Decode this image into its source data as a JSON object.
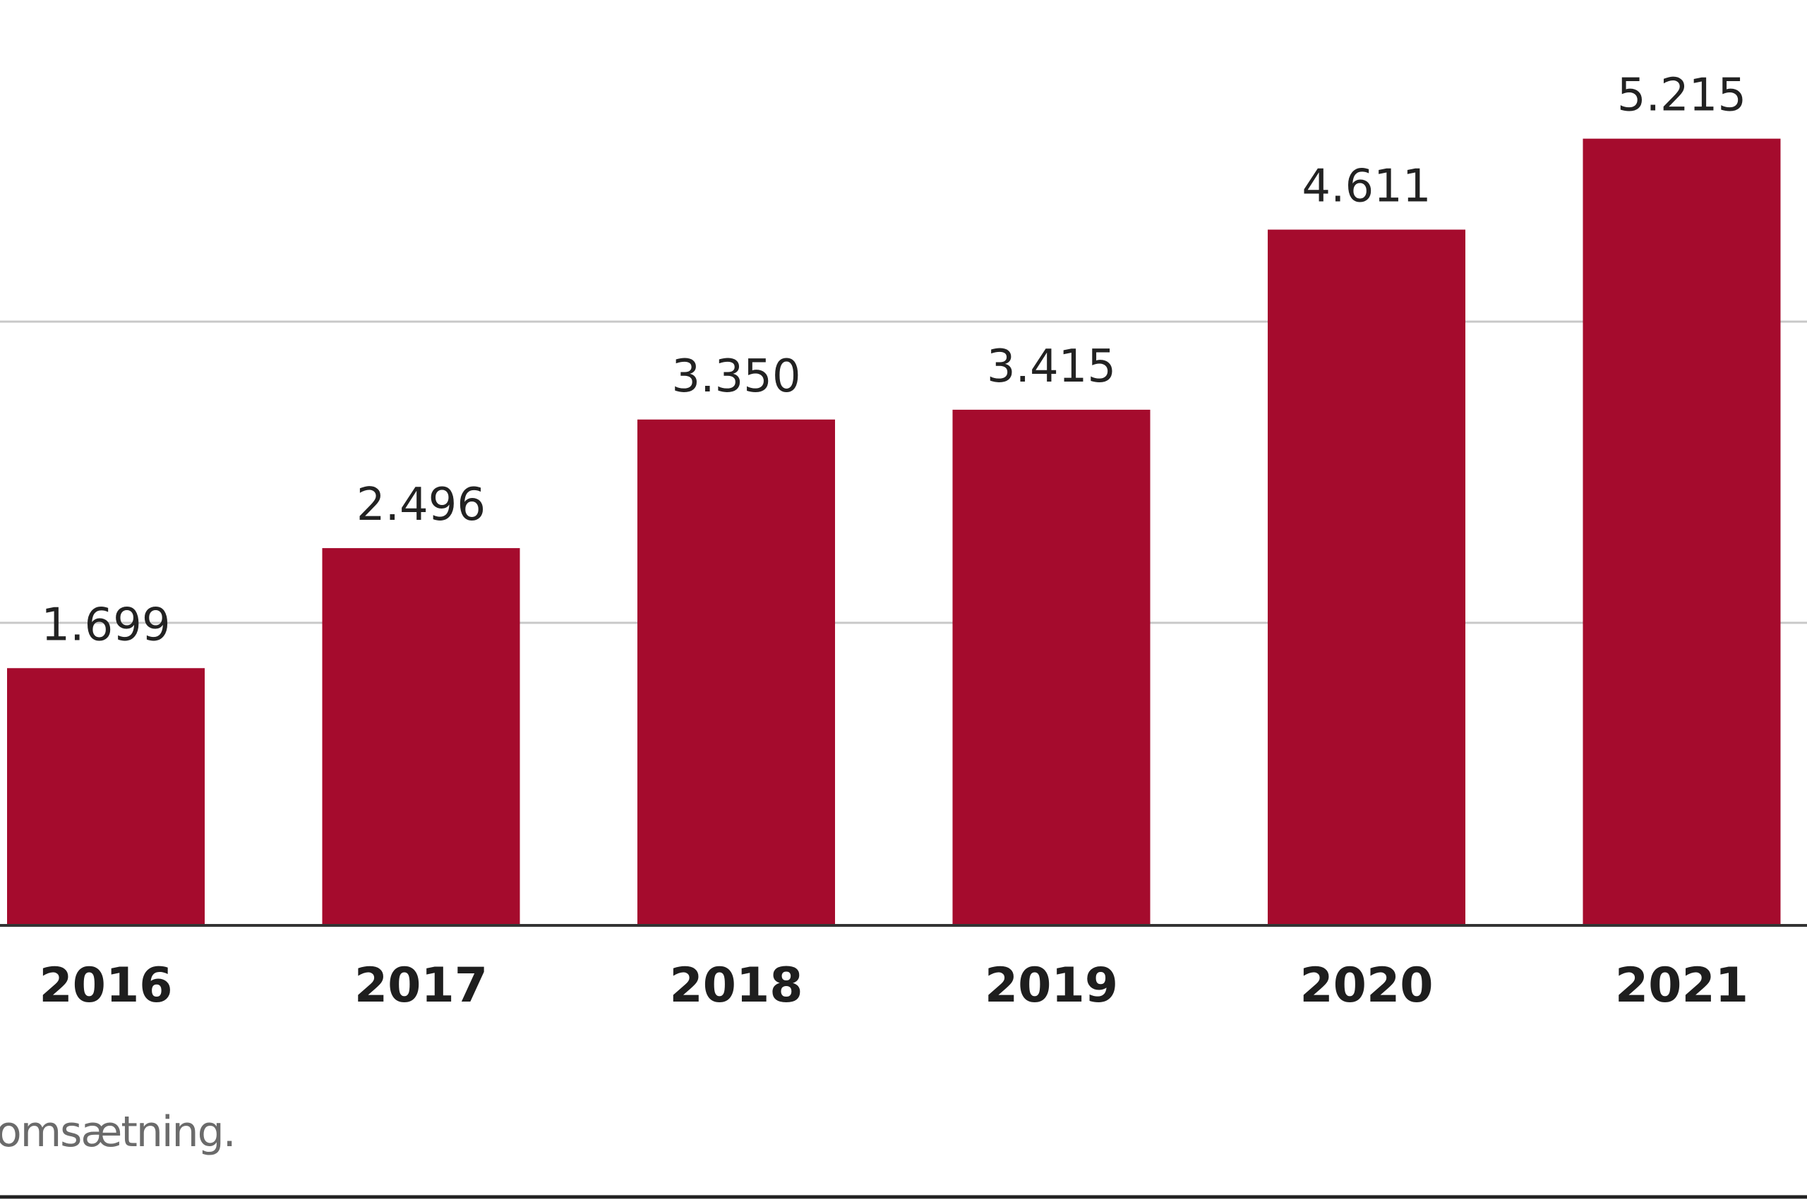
{
  "chart_data": {
    "type": "bar",
    "categories": [
      "2016",
      "2017",
      "2018",
      "2019",
      "2020",
      "2021"
    ],
    "values": [
      1699,
      2496,
      3350,
      3415,
      4611,
      5215
    ],
    "value_labels": [
      "1.699",
      "2.496",
      "3.350",
      "3.415",
      "4.611",
      "5.215"
    ],
    "bar_color": "#a50b2d",
    "ylim": [
      0,
      6000
    ],
    "gridlines": [
      2000,
      4000
    ],
    "grid": true,
    "legend": "none"
  },
  "footnote": "omsætning."
}
